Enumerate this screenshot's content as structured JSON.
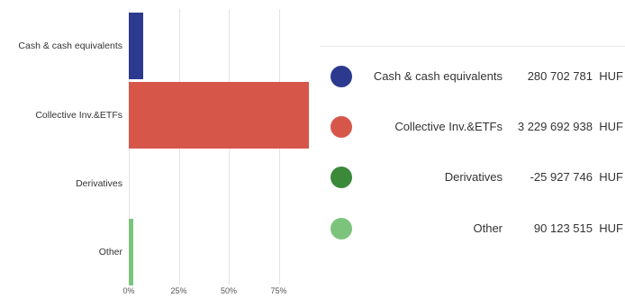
{
  "chart_data": {
    "type": "bar",
    "orientation": "horizontal",
    "categories": [
      "Cash & cash equivalents",
      "Collective Inv.&ETFs",
      "Derivatives",
      "Other"
    ],
    "values": [
      7.4,
      89.9,
      0.0,
      2.4
    ],
    "xlim": [
      0,
      100
    ],
    "x_ticks": [
      "0%",
      "25%",
      "50%",
      "75%"
    ],
    "x_tick_values": [
      0,
      25,
      50,
      75
    ],
    "grid": true,
    "colors": [
      "#2b3a8f",
      "#d6574a",
      "#3a8a3a",
      "#7cc47c"
    ]
  },
  "legend": {
    "items": [
      {
        "name": "Cash & cash equivalents",
        "value": "280 702 781",
        "unit": "HUF",
        "color": "#2b3a8f"
      },
      {
        "name": "Collective Inv.&ETFs",
        "value": "3 229 692 938",
        "unit": "HUF",
        "color": "#d6574a"
      },
      {
        "name": "Derivatives",
        "value": "-25 927 746",
        "unit": "HUF",
        "color": "#3a8a3a"
      },
      {
        "name": "Other",
        "value": "90 123 515",
        "unit": "HUF",
        "color": "#7cc47c"
      }
    ]
  }
}
